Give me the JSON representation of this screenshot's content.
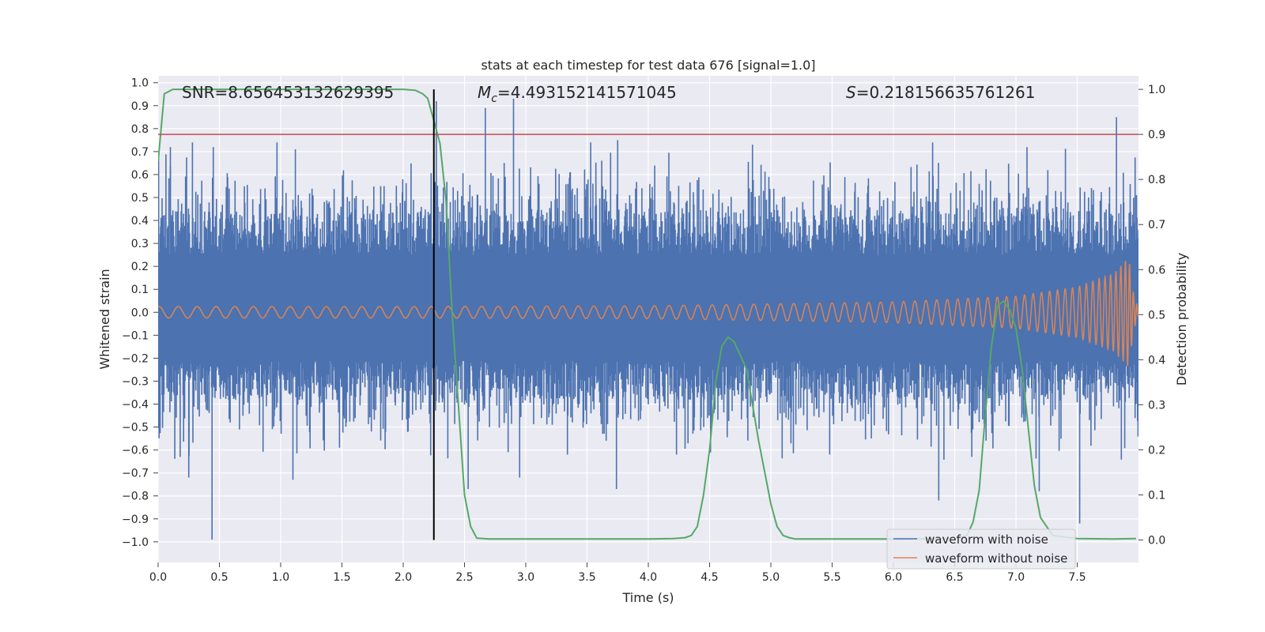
{
  "chart_data": {
    "type": "line",
    "title": "stats at each timestep for test data 676 [signal=1.0]",
    "xlabel": "Time (s)",
    "ylabel": "Whitened strain",
    "y2label": "Detection probability",
    "xlim": [
      0.0,
      8.0
    ],
    "ylim": [
      -1.09,
      1.03
    ],
    "y2lim": [
      -0.05,
      1.03
    ],
    "xticks": [
      "0.0",
      "0.5",
      "1.0",
      "1.5",
      "2.0",
      "2.5",
      "3.0",
      "3.5",
      "4.0",
      "4.5",
      "5.0",
      "5.5",
      "6.0",
      "6.5",
      "7.0",
      "7.5"
    ],
    "yticks": [
      "1.0",
      "0.9",
      "0.8",
      "0.7",
      "0.6",
      "0.5",
      "0.4",
      "0.3",
      "0.2",
      "0.1",
      "0.0",
      "−0.1",
      "−0.2",
      "−0.3",
      "−0.4",
      "−0.5",
      "−0.6",
      "−0.7",
      "−0.8",
      "−0.9",
      "−1.0"
    ],
    "y2ticks": [
      "1.0",
      "0.9",
      "0.8",
      "0.7",
      "0.6",
      "0.5",
      "0.4",
      "0.3",
      "0.2",
      "0.1",
      "0.0"
    ],
    "grid": true,
    "legend_placement": "lower-right",
    "annotations": {
      "snr": "SNR=8.656453132629395",
      "mc_symbol": "M",
      "mc_sub": "c",
      "mc_value": "=4.493152141571045",
      "s_symbol": "S",
      "s_value": "=0.218156635761261"
    },
    "threshold": 0.9,
    "marker_time": 2.25,
    "colors": {
      "background": "#eaeaf2",
      "noise": "#4c72b0",
      "signal": "#dd8452",
      "probability": "#55a868",
      "threshold": "#c44e52",
      "marker": "#000000"
    },
    "series": [
      {
        "name": "waveform with noise",
        "band": {
          "upper_typical": 0.33,
          "lower_typical": -0.28
        },
        "peaks_upper": [
          [
            0.1,
            0.72
          ],
          [
            0.28,
            0.74
          ],
          [
            0.45,
            0.72
          ],
          [
            0.97,
            0.74
          ],
          [
            1.12,
            0.71
          ],
          [
            2.27,
            0.92
          ],
          [
            2.67,
            0.89
          ],
          [
            2.9,
            0.93
          ],
          [
            3.53,
            0.74
          ],
          [
            3.75,
            0.75
          ],
          [
            4.85,
            0.73
          ],
          [
            6.32,
            0.74
          ],
          [
            7.09,
            0.72
          ],
          [
            7.82,
            0.85
          ]
        ],
        "peaks_lower": [
          [
            0.18,
            -0.63
          ],
          [
            0.25,
            -0.72
          ],
          [
            0.44,
            -0.99
          ],
          [
            1.1,
            -0.73
          ],
          [
            1.48,
            -0.59
          ],
          [
            2.53,
            -0.77
          ],
          [
            2.95,
            -0.72
          ],
          [
            3.74,
            -0.77
          ],
          [
            4.23,
            -0.62
          ],
          [
            5.48,
            -0.62
          ],
          [
            6.37,
            -0.82
          ],
          [
            6.64,
            -0.63
          ],
          [
            7.19,
            -0.78
          ],
          [
            7.52,
            -0.92
          ]
        ]
      },
      {
        "name": "waveform without noise",
        "envelope": [
          [
            0.0,
            0.025
          ],
          [
            2.0,
            0.025
          ],
          [
            4.0,
            0.028
          ],
          [
            6.0,
            0.045
          ],
          [
            7.0,
            0.07
          ],
          [
            7.5,
            0.11
          ],
          [
            7.8,
            0.17
          ],
          [
            7.92,
            0.24
          ],
          [
            7.96,
            0.08
          ],
          [
            8.0,
            0.01
          ]
        ]
      },
      {
        "name": "detection probability",
        "x": [
          0.0,
          0.05,
          0.12,
          0.2,
          0.3,
          0.5,
          1.0,
          1.5,
          2.0,
          2.1,
          2.16,
          2.2,
          2.25,
          2.3,
          2.35,
          2.4,
          2.45,
          2.5,
          2.55,
          2.6,
          2.7,
          3.0,
          3.5,
          4.0,
          4.2,
          4.3,
          4.35,
          4.4,
          4.45,
          4.5,
          4.55,
          4.6,
          4.65,
          4.7,
          4.75,
          4.8,
          4.85,
          4.9,
          4.95,
          5.0,
          5.05,
          5.1,
          5.15,
          5.2,
          5.3,
          5.5,
          6.0,
          6.5,
          6.6,
          6.65,
          6.7,
          6.75,
          6.8,
          6.85,
          6.9,
          6.95,
          7.0,
          7.05,
          7.1,
          7.15,
          7.2,
          7.3,
          7.5,
          7.8,
          7.98
        ],
        "y": [
          0.84,
          0.99,
          1.0,
          1.0,
          1.0,
          1.0,
          1.0,
          1.0,
          1.0,
          0.998,
          0.99,
          0.98,
          0.93,
          0.88,
          0.75,
          0.5,
          0.3,
          0.1,
          0.03,
          0.004,
          0.002,
          0.002,
          0.002,
          0.002,
          0.003,
          0.005,
          0.01,
          0.03,
          0.1,
          0.2,
          0.35,
          0.43,
          0.45,
          0.44,
          0.41,
          0.38,
          0.3,
          0.22,
          0.15,
          0.08,
          0.03,
          0.01,
          0.005,
          0.002,
          0.002,
          0.002,
          0.002,
          0.003,
          0.01,
          0.04,
          0.11,
          0.28,
          0.43,
          0.52,
          0.53,
          0.51,
          0.47,
          0.38,
          0.25,
          0.12,
          0.05,
          0.01,
          0.003,
          0.002,
          0.003
        ]
      }
    ]
  }
}
